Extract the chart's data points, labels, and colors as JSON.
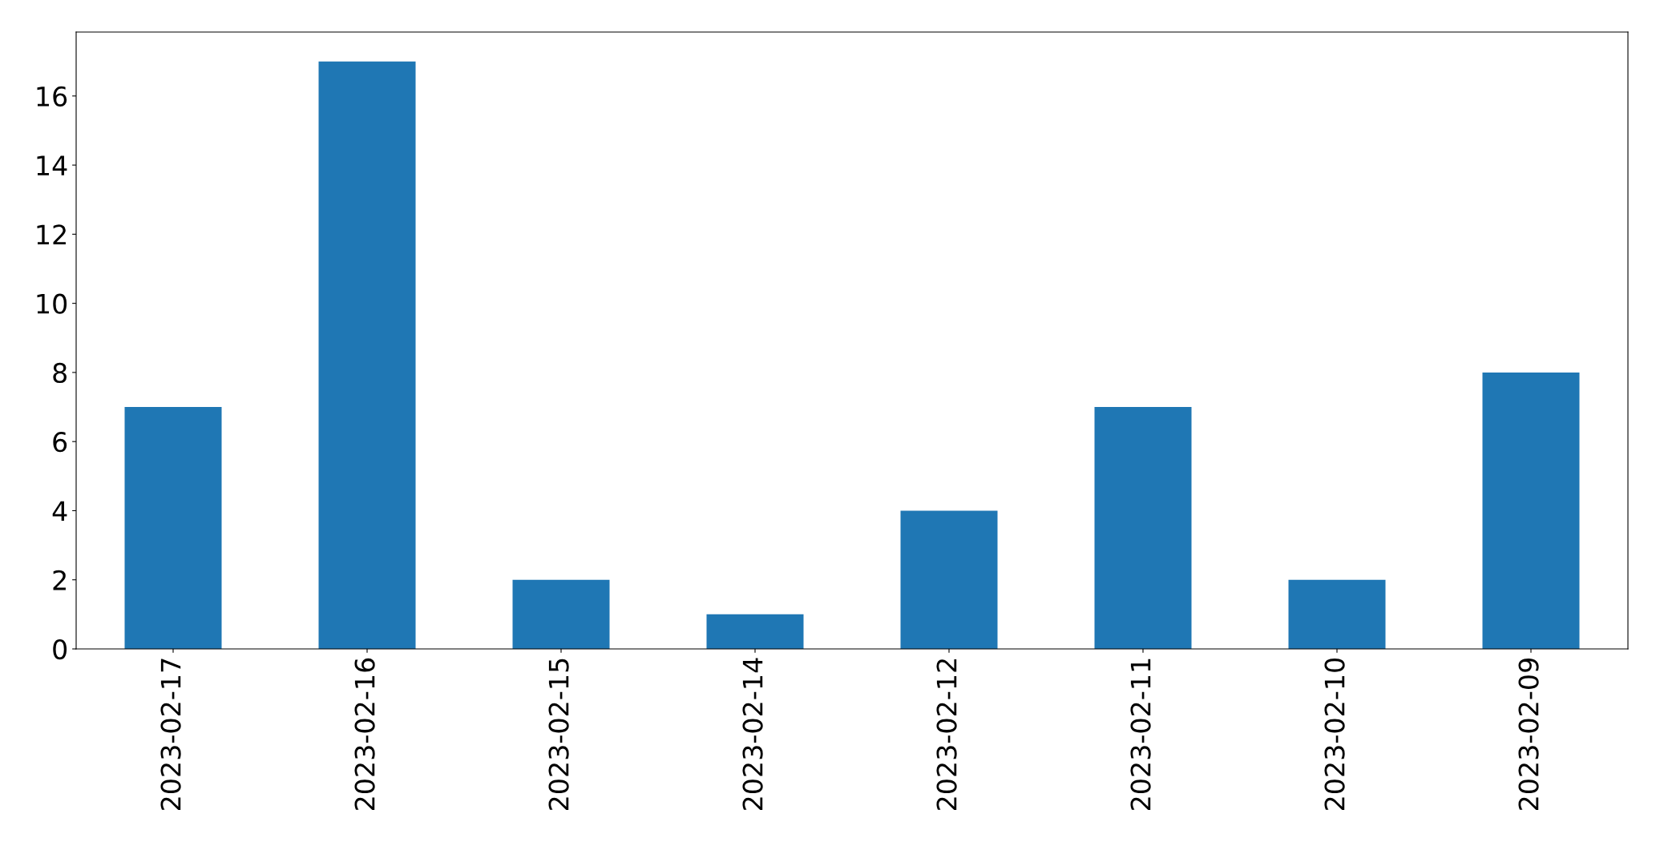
{
  "chart_data": {
    "type": "bar",
    "categories": [
      "2023-02-17",
      "2023-02-16",
      "2023-02-15",
      "2023-02-14",
      "2023-02-12",
      "2023-02-11",
      "2023-02-10",
      "2023-02-09"
    ],
    "values": [
      7,
      17,
      2,
      1,
      4,
      7,
      2,
      8
    ],
    "color": "#1f77b4",
    "ylim": [
      0,
      17.85
    ],
    "yticks": [
      0,
      2,
      4,
      6,
      8,
      10,
      12,
      14,
      16
    ],
    "grid": false,
    "legend": false
  }
}
